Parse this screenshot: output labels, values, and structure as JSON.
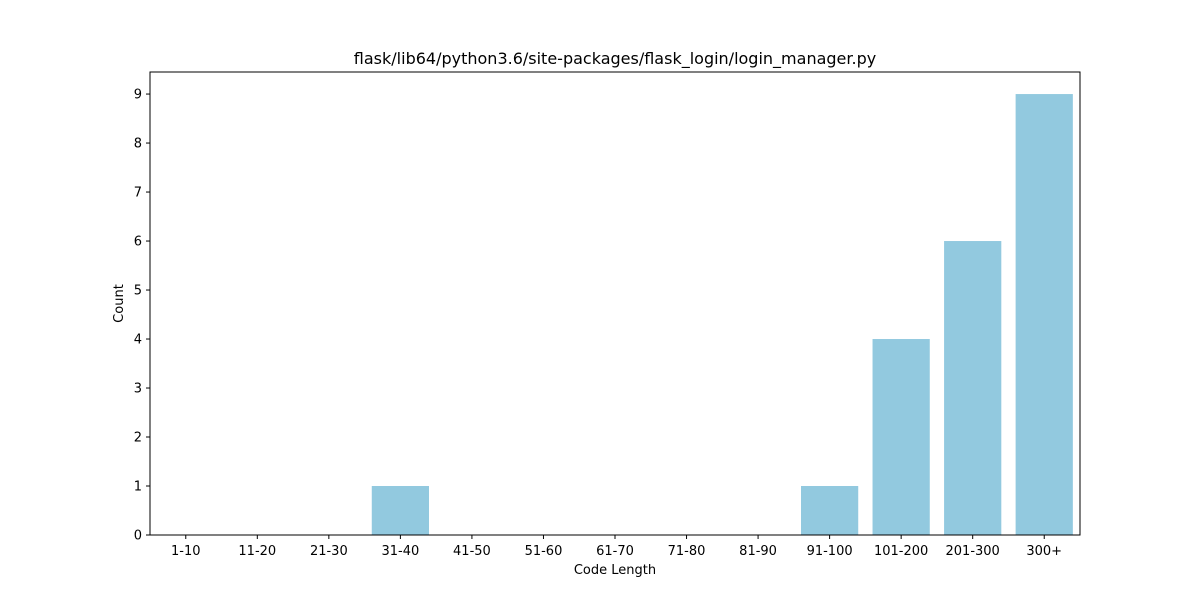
{
  "chart_data": {
    "type": "bar",
    "title": "flask/lib64/python3.6/site-packages/flask_login/login_manager.py",
    "xlabel": "Code Length",
    "ylabel": "Count",
    "categories": [
      "1-10",
      "11-20",
      "21-30",
      "31-40",
      "41-50",
      "51-60",
      "61-70",
      "71-80",
      "81-90",
      "91-100",
      "101-200",
      "201-300",
      "300+"
    ],
    "values": [
      0,
      0,
      0,
      1,
      0,
      0,
      0,
      0,
      0,
      1,
      4,
      6,
      9
    ],
    "ylim": [
      0,
      9.45
    ],
    "yticks": [
      0,
      1,
      2,
      3,
      4,
      5,
      6,
      7,
      8,
      9
    ],
    "grid": false,
    "bar_color": "#92c9df"
  }
}
